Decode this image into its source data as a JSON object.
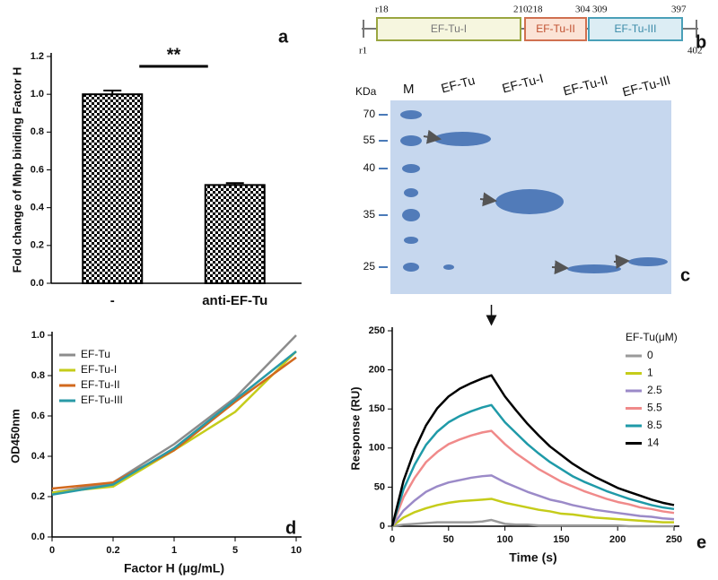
{
  "chart_data": [
    {
      "type": "bar",
      "panel_label": "a",
      "ylabel": "Fold change of Mhp binding Factor H",
      "categories": [
        "-",
        "anti-EF-Tu"
      ],
      "values": [
        1.0,
        0.52
      ],
      "errors": [
        0.02,
        0.01
      ],
      "annotation": "**",
      "ylim": [
        0,
        1.2
      ],
      "yticks": [
        {
          "value": 0,
          "label": "0.0"
        },
        0.2,
        0.4,
        0.6,
        0.8,
        {
          "value": 1,
          "label": "1.0"
        },
        1.2
      ],
      "color": "#000000"
    },
    {
      "type": "line",
      "panel_label": "d",
      "xlabel": "Factor H (μg/mL)",
      "ylabel": "OD450nm",
      "categories": [
        "0",
        "0.2",
        "1",
        "5",
        "10"
      ],
      "ylim": [
        0,
        1
      ],
      "yticks": [
        {
          "value": 0,
          "label": "0.0"
        },
        0.2,
        0.4,
        0.6,
        0.8,
        {
          "value": 1,
          "label": "1.0"
        }
      ],
      "series": [
        {
          "name": "EF-Tu",
          "color": "#8c8c8c",
          "values": [
            0.22,
            0.27,
            0.46,
            0.69,
            1.0
          ]
        },
        {
          "name": "EF-Tu-I",
          "color": "#c5cc1a",
          "values": [
            0.22,
            0.25,
            0.43,
            0.62,
            0.92
          ]
        },
        {
          "name": "EF-Tu-II",
          "color": "#d2691e",
          "values": [
            0.24,
            0.27,
            0.43,
            0.67,
            0.89
          ]
        },
        {
          "name": "EF-Tu-III",
          "color": "#2a9aa6",
          "values": [
            0.21,
            0.26,
            0.44,
            0.68,
            0.92
          ]
        }
      ]
    },
    {
      "type": "line",
      "panel_label": "e",
      "xlabel": "Time (s)",
      "ylabel": "Response (RU)",
      "legend_title": "EF-Tu(μM)",
      "x": [
        0,
        10,
        20,
        30,
        40,
        50,
        60,
        70,
        80,
        88,
        100,
        110,
        120,
        130,
        140,
        150,
        160,
        170,
        180,
        190,
        200,
        210,
        220,
        230,
        240,
        250
      ],
      "xlim": [
        0,
        250
      ],
      "xticks": [
        0,
        50,
        100,
        150,
        200,
        250
      ],
      "ylim": [
        0,
        250
      ],
      "yticks": [
        0,
        50,
        100,
        150,
        200,
        250
      ],
      "series": [
        {
          "name": "0",
          "color": "#9a9a9a",
          "values": [
            0,
            2,
            3,
            4,
            5,
            5,
            5,
            5,
            6,
            8,
            3,
            2,
            2,
            1,
            1,
            1,
            1,
            1,
            1,
            1,
            1,
            0,
            0,
            0,
            0,
            0
          ]
        },
        {
          "name": "1",
          "color": "#c5cc1a",
          "values": [
            0,
            11,
            18,
            23,
            27,
            30,
            32,
            33,
            34,
            35,
            30,
            27,
            24,
            21,
            19,
            16,
            15,
            13,
            11,
            10,
            9,
            8,
            7,
            6,
            5,
            5
          ]
        },
        {
          "name": "2.5",
          "color": "#9b8ac8",
          "values": [
            0,
            20,
            33,
            44,
            51,
            56,
            59,
            62,
            64,
            65,
            56,
            50,
            44,
            39,
            34,
            31,
            27,
            24,
            21,
            19,
            17,
            15,
            13,
            12,
            10,
            9
          ]
        },
        {
          "name": "5.5",
          "color": "#f08a8a",
          "values": [
            0,
            37,
            62,
            82,
            95,
            105,
            111,
            116,
            120,
            122,
            105,
            93,
            83,
            73,
            65,
            57,
            51,
            45,
            40,
            35,
            31,
            28,
            24,
            22,
            19,
            17
          ]
        },
        {
          "name": "8.5",
          "color": "#1f9aa8",
          "values": [
            0,
            47,
            79,
            104,
            121,
            133,
            141,
            147,
            152,
            155,
            133,
            119,
            105,
            93,
            82,
            73,
            64,
            57,
            51,
            45,
            40,
            35,
            31,
            27,
            24,
            22
          ]
        },
        {
          "name": "14",
          "color": "#000000",
          "values": [
            0,
            58,
            98,
            129,
            151,
            166,
            176,
            183,
            189,
            193,
            166,
            148,
            131,
            116,
            102,
            91,
            80,
            71,
            63,
            56,
            49,
            44,
            39,
            34,
            30,
            27
          ]
        }
      ]
    }
  ],
  "domain_diagram": {
    "label": "b",
    "start": "r1",
    "end": "402",
    "domains": [
      {
        "name": "EF-Tu-I",
        "start": "r18",
        "end": "210"
      },
      {
        "name": "EF-Tu-II",
        "start": "218",
        "end": "304"
      },
      {
        "name": "EF-Tu-III",
        "start": "309",
        "end": "397"
      }
    ]
  },
  "gel": {
    "label": "c",
    "unit": "KDa",
    "marker_lane": "M",
    "lanes": [
      "EF-Tu",
      "EF-Tu-I",
      "EF-Tu-II",
      "EF-Tu-III"
    ],
    "markers": [
      70,
      55,
      40,
      35,
      25
    ]
  }
}
